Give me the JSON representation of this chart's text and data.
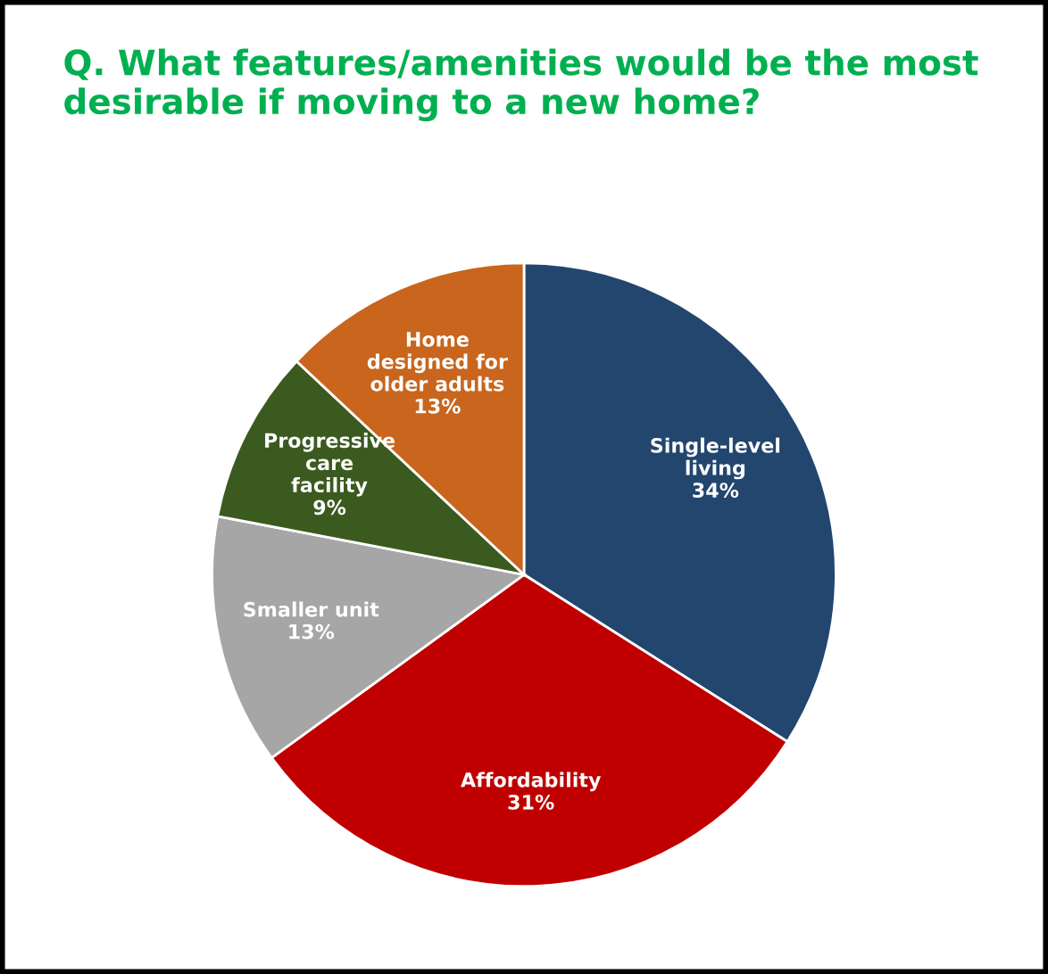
{
  "chart_data": {
    "type": "pie",
    "title": "Q. What features/amenities would be the most desirable if moving to a new home?",
    "categories": [
      "Single-level living",
      "Affordability",
      "Smaller unit",
      "Progressive care facility",
      "Home designed for older adults"
    ],
    "values": [
      34,
      31,
      13,
      9,
      13
    ],
    "value_labels": [
      "34%",
      "31%",
      "13%",
      "9%",
      "13%"
    ],
    "colors": [
      "#23466f",
      "#c00000",
      "#a6a6a6",
      "#3b5a1f",
      "#c9651c"
    ]
  }
}
